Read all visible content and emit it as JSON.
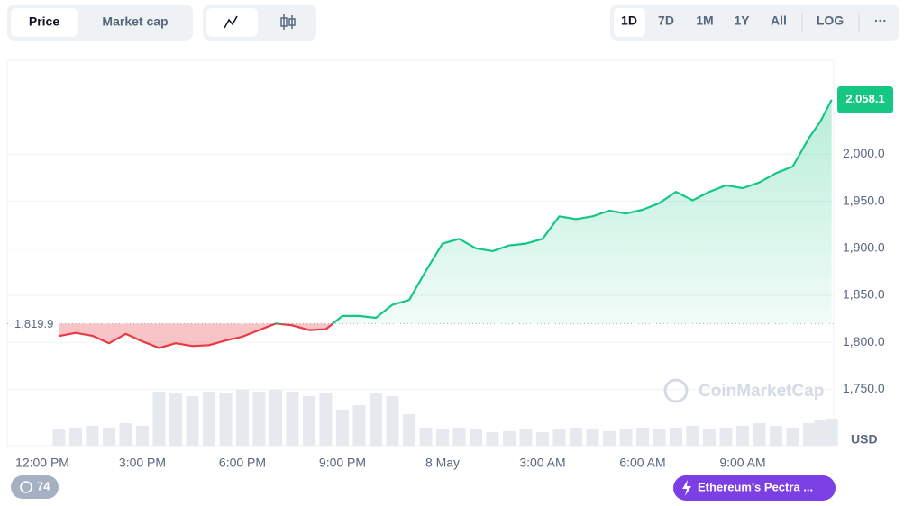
{
  "toolbar": {
    "left_tabs": [
      "Price",
      "Market cap"
    ],
    "ranges": [
      "1D",
      "7D",
      "1M",
      "1Y",
      "All"
    ],
    "log": "LOG",
    "more": "···"
  },
  "chart_data": {
    "type": "line",
    "x": [
      "12:30 PM",
      "1:00 PM",
      "1:30 PM",
      "2:00 PM",
      "2:30 PM",
      "3:00 PM",
      "3:30 PM",
      "4:00 PM",
      "4:30 PM",
      "5:00 PM",
      "5:30 PM",
      "6:00 PM",
      "6:30 PM",
      "7:00 PM",
      "7:30 PM",
      "8:00 PM",
      "8:30 PM",
      "9:00 PM",
      "9:30 PM",
      "10:00 PM",
      "10:30 PM",
      "11:00 PM",
      "11:30 PM",
      "12:00 AM",
      "12:30 AM",
      "1:00 AM",
      "1:30 AM",
      "2:00 AM",
      "2:30 AM",
      "3:00 AM",
      "3:30 AM",
      "4:00 AM",
      "4:30 AM",
      "5:00 AM",
      "5:30 AM",
      "6:00 AM",
      "6:30 AM",
      "7:00 AM",
      "7:30 AM",
      "8:00 AM",
      "8:30 AM",
      "9:00 AM",
      "9:30 AM",
      "10:00 AM",
      "10:30 AM",
      "11:00 AM",
      "11:20 AM",
      "11:40 AM"
    ],
    "values": [
      1806.7,
      1810,
      1807,
      1799,
      1809,
      1801,
      1794,
      1799,
      1796,
      1797,
      1802,
      1806,
      1813,
      1820,
      1818,
      1813,
      1814,
      1828,
      1828,
      1826,
      1840,
      1845,
      1876,
      1905,
      1910,
      1900,
      1897,
      1903,
      1905,
      1910,
      1934,
      1931,
      1934,
      1940,
      1937,
      1941,
      1948,
      1960,
      1951,
      1960,
      1967,
      1964,
      1970,
      1980,
      1987,
      2018,
      2035,
      2058.1
    ],
    "volume": [
      18,
      20,
      22,
      20,
      25,
      22,
      60,
      58,
      55,
      60,
      58,
      62,
      60,
      62,
      60,
      55,
      58,
      40,
      45,
      58,
      55,
      35,
      20,
      18,
      20,
      18,
      15,
      16,
      18,
      15,
      18,
      20,
      18,
      16,
      18,
      20,
      18,
      20,
      22,
      18,
      20,
      22,
      25,
      22,
      20,
      25,
      28,
      30
    ],
    "volume_lim": [
      0,
      100
    ],
    "color_up": "#16c784",
    "color_down": "#ea3943",
    "ylim": [
      1690,
      2100
    ],
    "yticks": [
      {
        "value": 1750,
        "label": "1,750.0"
      },
      {
        "value": 1800,
        "label": "1,800.0"
      },
      {
        "value": 1850,
        "label": "1,850.0"
      },
      {
        "value": 1900,
        "label": "1,900.0"
      },
      {
        "value": 1950,
        "label": "1,950.0"
      },
      {
        "value": 2000,
        "label": "2,000.0"
      }
    ],
    "xticks": [
      "12:00 PM",
      "3:00 PM",
      "6:00 PM",
      "9:00 PM",
      {
        "value": "12:00 AM",
        "label": "8 May"
      },
      "3:00 AM",
      "6:00 AM",
      "9:00 AM"
    ],
    "baseline": {
      "value": 1819.9,
      "label": "1,819.9"
    },
    "last_price": {
      "value": 2058.1,
      "label": "2,058.1"
    },
    "currency": "USD",
    "watermark": "CoinMarketCap",
    "grid": true
  },
  "footer": {
    "history_count": 74,
    "news": "Ethereum's Pectra ..."
  }
}
